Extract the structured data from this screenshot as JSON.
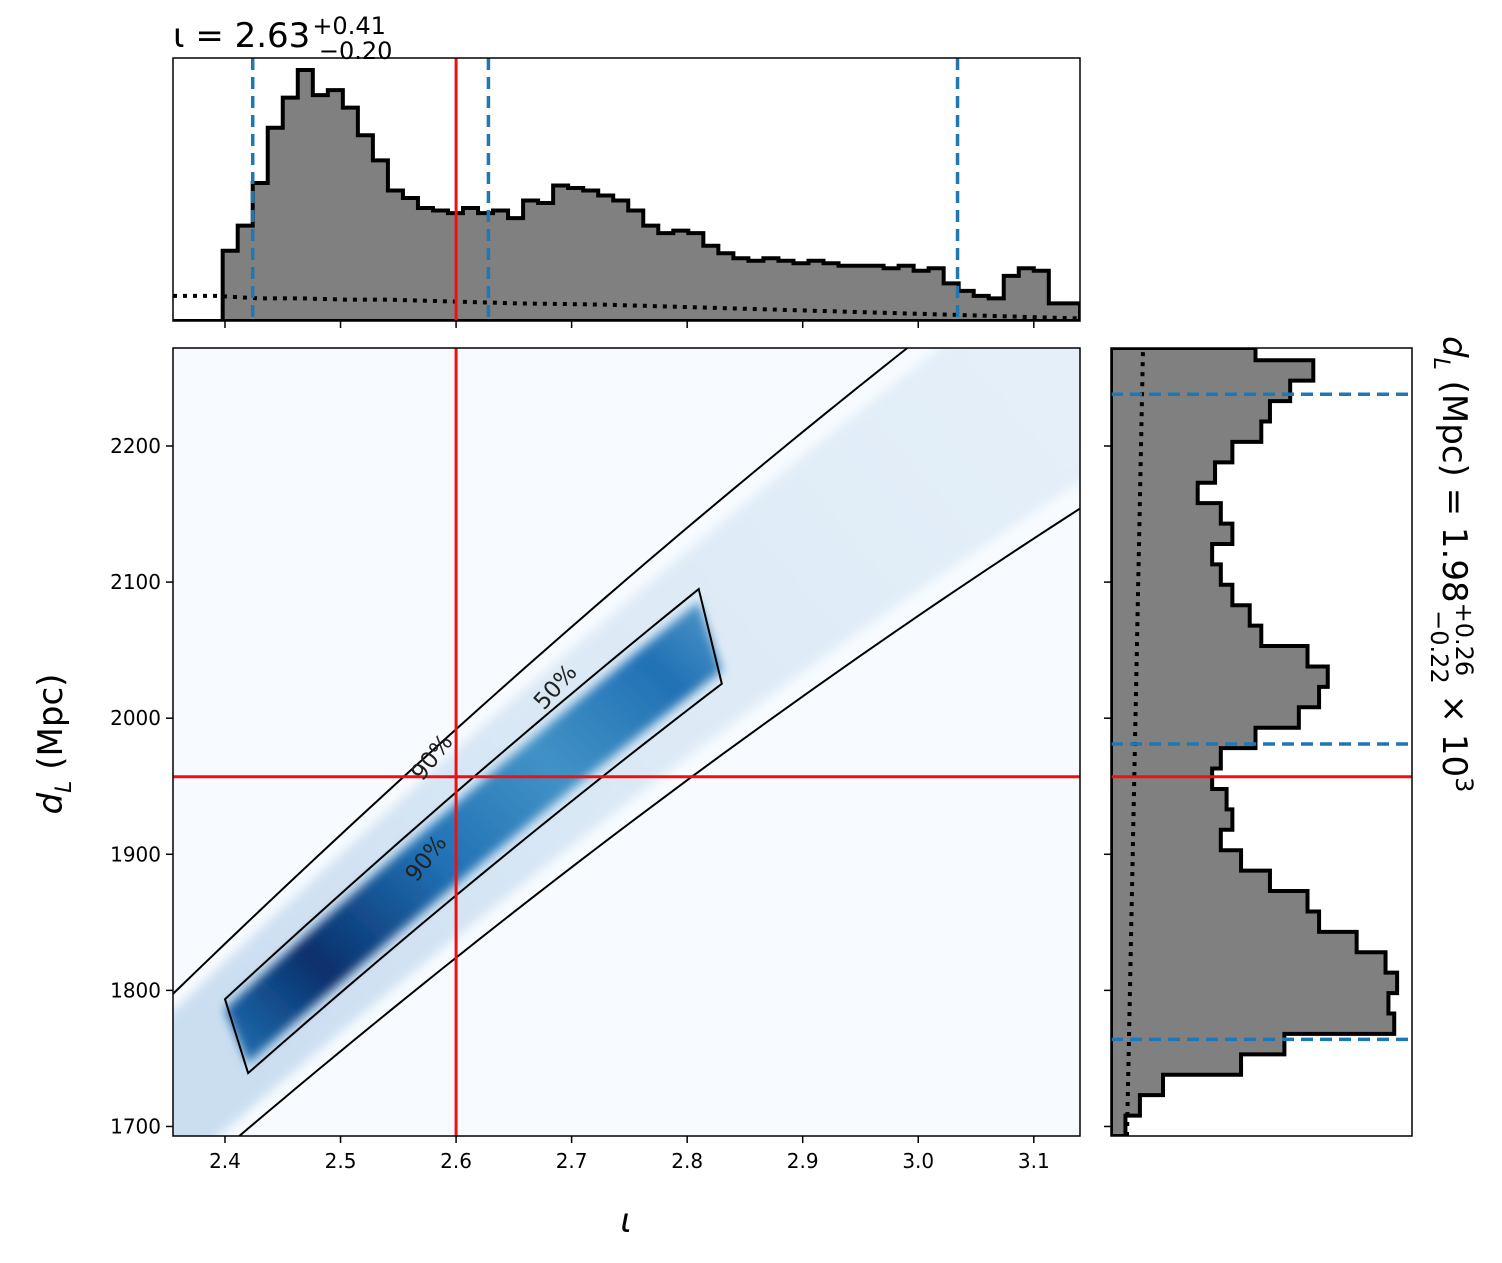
{
  "chart_data": {
    "type": "corner",
    "colors": {
      "hist_fill": "#808080",
      "hist_edge": "#000000",
      "quantile_line": "#1f77b4",
      "truth_line": "#ee1111",
      "density_low": "#f7fbff",
      "density_high": "#08306b",
      "contour": "#000000"
    },
    "top_title": {
      "prefix": "ι = 2.63",
      "sup": "+0.41",
      "sub": "−0.20"
    },
    "right_title": {
      "prefix": "d",
      "prefix_sub": "L",
      "middle": " (Mpc) = 1.98",
      "sup": "+0.26",
      "sub": "−0.22",
      "suffix": " × 10",
      "suffix_sup": "3"
    },
    "xlabel": "ι",
    "ylabel": "d",
    "ylabel_sub": "L",
    "ylabel_units": " (Mpc)",
    "xlim": [
      2.355,
      3.14
    ],
    "ylim": [
      1693,
      2272
    ],
    "xticks": [
      2.4,
      2.5,
      2.6,
      2.7,
      2.8,
      2.9,
      3.0,
      3.1
    ],
    "xtick_labels": [
      "2.4",
      "2.5",
      "2.6",
      "2.7",
      "2.8",
      "2.9",
      "3.0",
      "3.1"
    ],
    "yticks": [
      1700,
      1800,
      1900,
      2000,
      2100,
      2200
    ],
    "ytick_labels": [
      "1700",
      "1800",
      "1900",
      "2000",
      "2100",
      "2200"
    ],
    "truth": {
      "iota": 2.6,
      "dL": 1957
    },
    "iota_quantiles": [
      2.424,
      2.628,
      3.034
    ],
    "dL_quantiles": [
      1764,
      1981,
      2238
    ],
    "iota_hist": {
      "bin_edges": [
        2.355,
        2.372,
        2.385,
        2.398,
        2.411,
        2.424,
        2.437,
        2.45,
        2.463,
        2.476,
        2.489,
        2.502,
        2.515,
        2.528,
        2.541,
        2.554,
        2.567,
        2.58,
        2.593,
        2.606,
        2.619,
        2.632,
        2.645,
        2.658,
        2.671,
        2.684,
        2.697,
        2.71,
        2.723,
        2.736,
        2.749,
        2.762,
        2.775,
        2.788,
        2.801,
        2.814,
        2.827,
        2.84,
        2.853,
        2.866,
        2.879,
        2.892,
        2.905,
        2.918,
        2.931,
        2.944,
        2.957,
        2.97,
        2.983,
        2.996,
        3.009,
        3.022,
        3.035,
        3.048,
        3.061,
        3.074,
        3.087,
        3.1,
        3.113,
        3.126,
        3.14
      ],
      "counts": [
        0,
        0,
        0,
        0.28,
        0.38,
        0.55,
        0.77,
        0.89,
        1.0,
        0.9,
        0.92,
        0.85,
        0.74,
        0.64,
        0.52,
        0.49,
        0.45,
        0.44,
        0.43,
        0.45,
        0.43,
        0.44,
        0.41,
        0.48,
        0.47,
        0.54,
        0.53,
        0.52,
        0.5,
        0.48,
        0.44,
        0.38,
        0.35,
        0.36,
        0.35,
        0.3,
        0.27,
        0.25,
        0.24,
        0.25,
        0.24,
        0.23,
        0.24,
        0.23,
        0.22,
        0.22,
        0.22,
        0.21,
        0.22,
        0.2,
        0.21,
        0.15,
        0.12,
        0.1,
        0.09,
        0.18,
        0.21,
        0.2,
        0.07,
        0.07
      ]
    },
    "iota_prior": [
      0.1,
      0.1,
      0.09,
      0.09,
      0.085,
      0.085,
      0.08,
      0.075,
      0.07,
      0.068,
      0.065,
      0.06,
      0.055,
      0.05,
      0.045,
      0.04,
      0.035,
      0.03,
      0.025,
      0.02,
      0.015,
      0.01
    ],
    "dL_hist": {
      "bin_edges": [
        1693,
        1708,
        1723,
        1738,
        1753,
        1768,
        1783,
        1798,
        1813,
        1828,
        1843,
        1858,
        1873,
        1888,
        1903,
        1918,
        1933,
        1948,
        1963,
        1978,
        1993,
        2008,
        2023,
        2038,
        2053,
        2068,
        2083,
        2098,
        2113,
        2128,
        2143,
        2158,
        2173,
        2188,
        2203,
        2218,
        2233,
        2248,
        2263,
        2272
      ],
      "counts": [
        0.05,
        0.1,
        0.18,
        0.45,
        0.6,
        0.98,
        0.96,
        0.99,
        0.95,
        0.85,
        0.72,
        0.68,
        0.55,
        0.45,
        0.38,
        0.42,
        0.4,
        0.35,
        0.38,
        0.5,
        0.65,
        0.72,
        0.75,
        0.68,
        0.52,
        0.48,
        0.42,
        0.38,
        0.35,
        0.42,
        0.38,
        0.3,
        0.36,
        0.42,
        0.52,
        0.55,
        0.62,
        0.7,
        0.5
      ]
    },
    "contour_labels": [
      "90%",
      "90%",
      "50%"
    ]
  }
}
